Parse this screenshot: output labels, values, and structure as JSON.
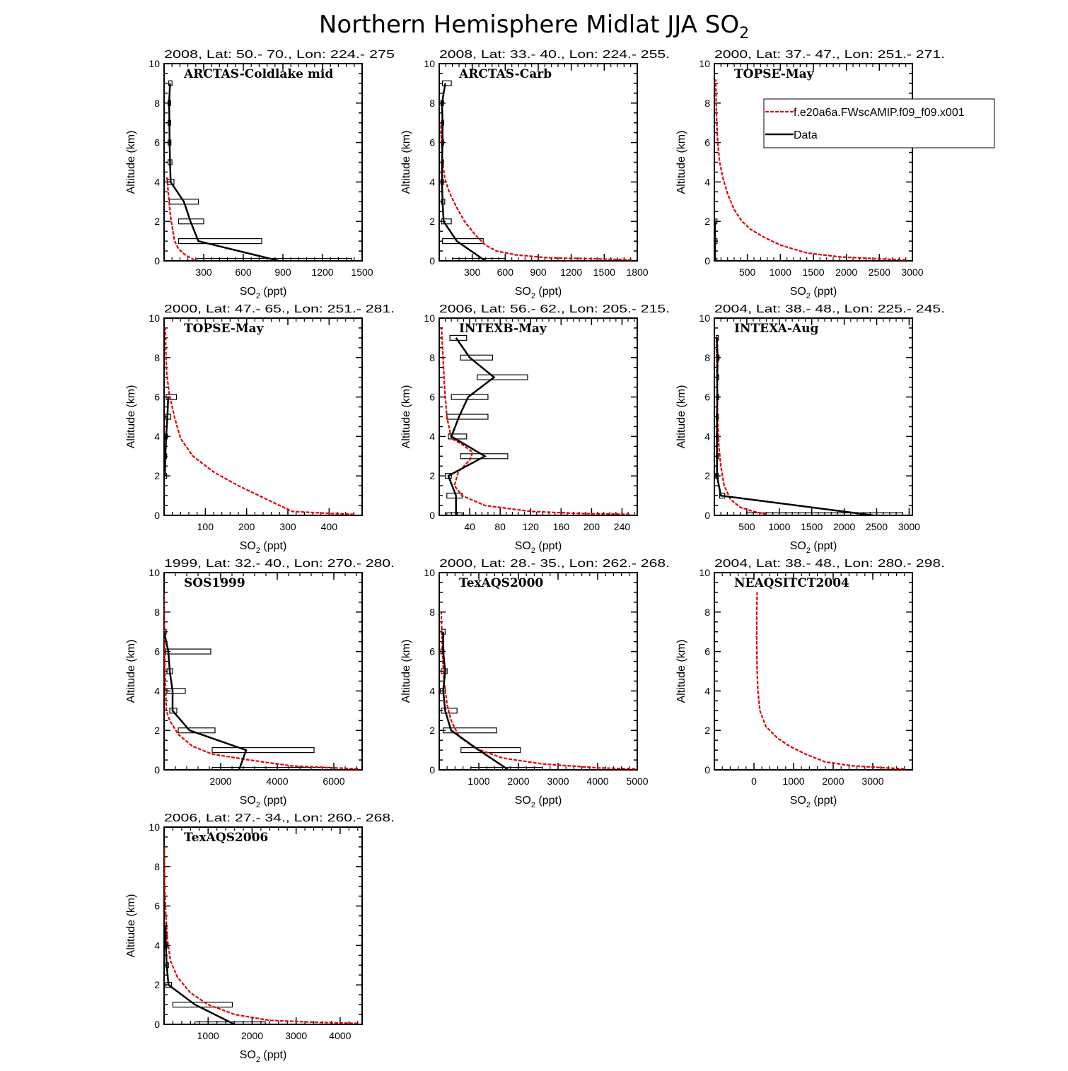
{
  "figure": {
    "title": "Northern Hemisphere Midlat JJA SO",
    "title_sub": "2"
  },
  "legend": {
    "model_label": "f.e20a6a.FWscAMIP.f09_f09.x001",
    "data_label": "Data"
  },
  "axis_text": {
    "ylabel": "Altitude (km)",
    "xlabel_main": "SO",
    "xlabel_sub": "2",
    "xlabel_tail": " (ppt)"
  },
  "colors": {
    "model": "#e00000",
    "data": "#000000",
    "frame": "#000000"
  },
  "chart_data": [
    {
      "type": "line",
      "title": "2008, Lat:  50.- 70., Lon: 224.- 275",
      "name": "ARCTAS-Coldlake mid",
      "xlim": [
        0,
        1500
      ],
      "xticks": [
        300,
        600,
        900,
        1200,
        1500
      ],
      "ylim": [
        0,
        10
      ],
      "yticks": [
        0,
        2,
        4,
        6,
        8,
        10
      ],
      "model": {
        "x": [
          230,
          160,
          110,
          80,
          65,
          50,
          38,
          30,
          25,
          20
        ],
        "y": [
          0.05,
          0.3,
          0.6,
          1,
          1.6,
          2.2,
          3,
          3.6,
          4,
          4.3
        ]
      },
      "data": {
        "y": [
          0,
          1,
          2,
          3,
          4,
          5,
          6,
          7,
          8,
          9
        ],
        "x": [
          870,
          260,
          200,
          150,
          50,
          45,
          42,
          40,
          38,
          45
        ],
        "lo": [
          250,
          110,
          110,
          40,
          25,
          30,
          30,
          30,
          30,
          35
        ],
        "hi": [
          1420,
          740,
          300,
          260,
          75,
          60,
          52,
          50,
          50,
          60
        ]
      }
    },
    {
      "type": "line",
      "title": "2008, Lat:  33.- 40., Lon: 224.- 255.",
      "name": "ARCTAS-Carb",
      "xlim": [
        0,
        1800
      ],
      "xticks": [
        300,
        600,
        900,
        1200,
        1500,
        1800
      ],
      "ylim": [
        0,
        10
      ],
      "yticks": [
        0,
        2,
        4,
        6,
        8,
        10
      ],
      "model": {
        "x": [
          1750,
          1450,
          1000,
          700,
          520,
          420,
          330,
          230,
          150,
          90,
          50,
          30,
          20,
          15
        ],
        "y": [
          0.05,
          0.1,
          0.15,
          0.3,
          0.5,
          0.8,
          1.3,
          2,
          2.8,
          3.5,
          4.2,
          5,
          6,
          7
        ]
      },
      "data": {
        "y": [
          0,
          1,
          2,
          3,
          4,
          5,
          6,
          7,
          8,
          9
        ],
        "x": [
          420,
          160,
          40,
          30,
          25,
          25,
          30,
          30,
          25,
          55
        ],
        "lo": [
          120,
          30,
          20,
          20,
          15,
          20,
          20,
          20,
          15,
          30
        ],
        "hi": [
          600,
          400,
          110,
          50,
          40,
          35,
          40,
          40,
          40,
          110
        ]
      }
    },
    {
      "type": "line",
      "title": "2000, Lat: 37.- 47., Lon: 251.- 271.",
      "name": "TOPSE-May",
      "xlim": [
        0,
        3000
      ],
      "xticks": [
        500,
        1000,
        1500,
        2000,
        2500,
        3000
      ],
      "ylim": [
        0,
        10
      ],
      "yticks": [
        0,
        2,
        4,
        6,
        8,
        10
      ],
      "model": {
        "x": [
          2900,
          2500,
          1900,
          1400,
          1000,
          750,
          550,
          420,
          300,
          200,
          130,
          80,
          50,
          30,
          20
        ],
        "y": [
          0.05,
          0.1,
          0.2,
          0.4,
          0.8,
          1.2,
          1.6,
          2,
          2.6,
          3.4,
          4.2,
          5,
          6,
          7.5,
          9.2
        ]
      },
      "data": {
        "y": [
          0,
          1,
          2
        ],
        "x": [
          10,
          10,
          10
        ],
        "lo": [
          8,
          8,
          8
        ],
        "hi": [
          12,
          12,
          12
        ]
      }
    },
    {
      "type": "line",
      "title": "2000, Lat: 47.- 65., Lon: 251.- 281.",
      "name": "TOPSE-May",
      "xlim": [
        0,
        480
      ],
      "xticks": [
        100,
        200,
        300,
        400
      ],
      "ylim": [
        0,
        10
      ],
      "yticks": [
        0,
        2,
        4,
        6,
        8,
        10
      ],
      "model": {
        "x": [
          460,
          400,
          310,
          250,
          180,
          120,
          70,
          40,
          25,
          12,
          6,
          4,
          3
        ],
        "y": [
          0.05,
          0.1,
          0.2,
          0.8,
          1.5,
          2.2,
          3,
          3.9,
          5,
          6.2,
          7.3,
          8.5,
          9.5
        ]
      },
      "data": {
        "y": [
          2,
          3,
          4,
          5,
          6
        ],
        "x": [
          2,
          3,
          5,
          8,
          10
        ],
        "lo": [
          1,
          1,
          2,
          3,
          5
        ],
        "hi": [
          4,
          6,
          8,
          16,
          30
        ]
      }
    },
    {
      "type": "line",
      "title": "2006, Lat: 56.- 62., Lon: 205.- 215.",
      "name": "INTEXB-May",
      "xlim": [
        0,
        260
      ],
      "xticks": [
        40,
        80,
        120,
        160,
        200,
        240
      ],
      "ylim": [
        0,
        10
      ],
      "yticks": [
        0,
        2,
        4,
        6,
        8,
        10
      ],
      "model": {
        "x": [
          250,
          180,
          120,
          60,
          30,
          20,
          25,
          40,
          44,
          30,
          16,
          10,
          7,
          5,
          3
        ],
        "y": [
          0.05,
          0.1,
          0.2,
          0.5,
          1,
          1.5,
          2.2,
          2.8,
          3.2,
          3.6,
          3.9,
          5,
          6.5,
          8,
          9.5
        ]
      },
      "data": {
        "y": [
          0,
          1,
          2,
          3,
          4,
          5,
          6,
          7,
          8,
          9
        ],
        "x": [
          22,
          22,
          12,
          60,
          16,
          26,
          38,
          72,
          40,
          22
        ],
        "lo": [
          10,
          10,
          8,
          28,
          12,
          10,
          16,
          50,
          28,
          14
        ],
        "hi": [
          30,
          30,
          16,
          90,
          36,
          64,
          64,
          116,
          70,
          36
        ]
      }
    },
    {
      "type": "line",
      "title": "2004, Lat: 38.- 48., Lon: 225.- 245.",
      "name": "INTEXA-Aug",
      "xlim": [
        0,
        3050
      ],
      "xticks": [
        500,
        1000,
        1500,
        2000,
        2500,
        3000
      ],
      "ylim": [
        0,
        10
      ],
      "yticks": [
        0,
        2,
        4,
        6,
        8,
        10
      ],
      "model": {
        "x": [
          800,
          600,
          400,
          250,
          150,
          100,
          70,
          50,
          40,
          30
        ],
        "y": [
          0.05,
          0.2,
          0.4,
          0.8,
          1.5,
          2.5,
          3.5,
          5,
          7,
          9
        ]
      },
      "data": {
        "y": [
          0,
          1,
          2,
          3,
          4,
          5,
          6,
          7,
          8,
          9
        ],
        "x": [
          2450,
          100,
          40,
          40,
          40,
          40,
          45,
          45,
          50,
          40
        ],
        "lo": [
          500,
          80,
          20,
          30,
          30,
          30,
          35,
          35,
          40,
          30
        ],
        "hi": [
          2900,
          160,
          60,
          50,
          50,
          50,
          55,
          55,
          60,
          50
        ]
      }
    },
    {
      "type": "line",
      "title": "1999, Lat: 32.- 40., Lon: 270.- 280.",
      "name": "SOS1999",
      "xlim": [
        0,
        7000
      ],
      "xticks": [
        2000,
        4000,
        6000
      ],
      "ylim": [
        0,
        10
      ],
      "yticks": [
        0,
        2,
        4,
        6,
        8,
        10
      ],
      "model": {
        "x": [
          6850,
          6000,
          4500,
          3000,
          1700,
          1000,
          500,
          200,
          80,
          30,
          10,
          0
        ],
        "y": [
          0.05,
          0.1,
          0.2,
          0.5,
          0.8,
          1.2,
          1.8,
          2.5,
          3,
          5,
          7,
          9
        ]
      },
      "data": {
        "y": [
          0,
          1,
          2,
          3,
          4,
          5,
          6,
          7
        ],
        "x": [
          2650,
          2900,
          900,
          300,
          300,
          200,
          150,
          0
        ],
        "lo": [
          1700,
          1700,
          500,
          200,
          100,
          100,
          50,
          0
        ],
        "hi": [
          5900,
          5300,
          1800,
          450,
          750,
          300,
          1650,
          0
        ]
      }
    },
    {
      "type": "line",
      "title": "2000, Lat: 28.- 35., Lon: 262.- 268.",
      "name": "TexAQS2000",
      "xlim": [
        0,
        5000
      ],
      "xticks": [
        1000,
        2000,
        3000,
        4000,
        5000
      ],
      "ylim": [
        0,
        10
      ],
      "yticks": [
        0,
        2,
        4,
        6,
        8,
        10
      ],
      "model": {
        "x": [
          4950,
          4000,
          2600,
          1600,
          900,
          500,
          300,
          200,
          120,
          80,
          50
        ],
        "y": [
          0.05,
          0.1,
          0.3,
          0.6,
          1.1,
          1.7,
          2.5,
          3.3,
          4.5,
          6,
          8
        ]
      },
      "data": {
        "y": [
          0,
          1,
          2,
          3,
          4,
          5,
          6,
          7
        ],
        "x": [
          1750,
          1000,
          300,
          150,
          100,
          150,
          100,
          100
        ],
        "lo": [
          800,
          550,
          100,
          50,
          30,
          50,
          40,
          50
        ],
        "hi": [
          2600,
          2050,
          1450,
          450,
          150,
          200,
          120,
          150
        ]
      }
    },
    {
      "type": "line",
      "title": "2004, Lat: 38.- 48., Lon: 280.- 298.",
      "name": "NEAQSITCT2004",
      "xlim": [
        -1000,
        4000
      ],
      "xticks": [
        0,
        1000,
        2000,
        3000
      ],
      "ylim": [
        0,
        10
      ],
      "yticks": [
        0,
        2,
        4,
        6,
        8,
        10
      ],
      "model": {
        "x": [
          3800,
          3300,
          2500,
          1800,
          1300,
          900,
          600,
          300,
          150,
          100,
          80,
          70,
          70,
          80
        ],
        "y": [
          0.05,
          0.1,
          0.2,
          0.4,
          0.8,
          1.2,
          1.6,
          2.2,
          3,
          4,
          5,
          6.5,
          8,
          9
        ]
      }
    },
    {
      "type": "line",
      "title": "2006, Lat: 27.- 34., Lon: 260.- 268.",
      "name": "TexAQS2006",
      "xlim": [
        0,
        4500
      ],
      "xticks": [
        1000,
        2000,
        3000,
        4000
      ],
      "ylim": [
        0,
        10
      ],
      "yticks": [
        0,
        2,
        4,
        6,
        8,
        10
      ],
      "model": {
        "x": [
          4400,
          3500,
          2400,
          1600,
          1000,
          600,
          300,
          150,
          80,
          40,
          15,
          5
        ],
        "y": [
          0.05,
          0.1,
          0.2,
          0.5,
          1,
          1.6,
          2.4,
          3.2,
          4.2,
          5.5,
          7,
          9
        ]
      },
      "data": {
        "y": [
          0,
          1,
          2,
          3,
          4,
          5
        ],
        "x": [
          1600,
          700,
          100,
          60,
          40,
          30
        ],
        "lo": [
          700,
          200,
          40,
          40,
          20,
          10
        ],
        "hi": [
          2300,
          1550,
          170,
          100,
          60,
          40
        ]
      }
    }
  ]
}
